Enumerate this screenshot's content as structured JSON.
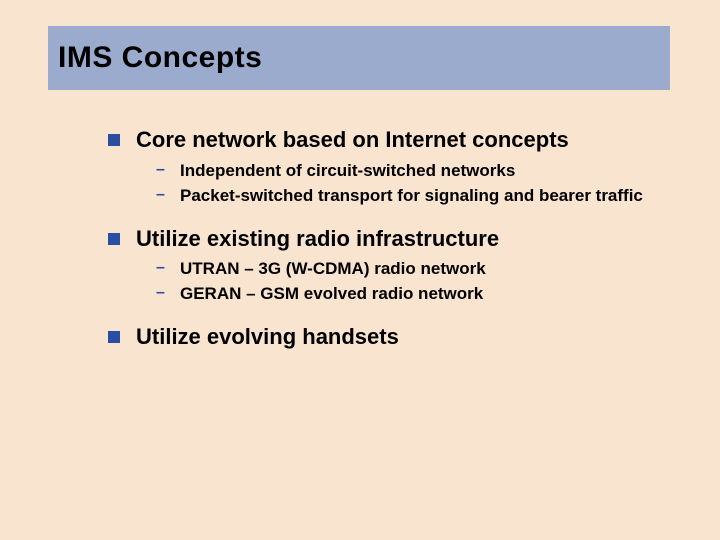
{
  "slide": {
    "title": "IMS Concepts",
    "background_color": "#f9e4cf",
    "title_band_color": "#9aabce",
    "bullet_color": "#2b4ea0",
    "text_color": "#000000",
    "title_fontsize": 30,
    "l1_fontsize": 22,
    "l2_fontsize": 17,
    "items": [
      {
        "text": "Core network based on Internet concepts",
        "sub": [
          "Independent of circuit-switched networks",
          "Packet-switched transport for signaling and bearer traffic"
        ]
      },
      {
        "text": "Utilize existing radio infrastructure",
        "sub": [
          "UTRAN – 3G (W-CDMA) radio network",
          "GERAN – GSM evolved radio network"
        ]
      },
      {
        "text": "Utilize evolving handsets",
        "sub": []
      }
    ]
  }
}
